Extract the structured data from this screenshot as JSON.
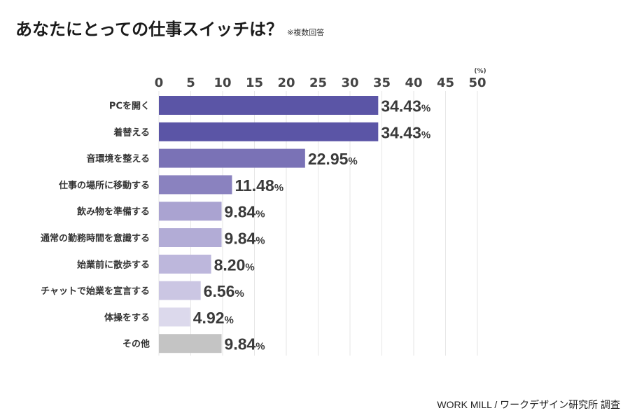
{
  "title": "あなたにとっての仕事スイッチは？",
  "title_note": "※複数回答",
  "footer": "WORK MILL / ワークデザイン研究所 調査",
  "chart_data": {
    "type": "bar",
    "orientation": "horizontal",
    "unit_label": "(%)",
    "xlim": [
      0,
      50
    ],
    "ticks": [
      "0",
      "5",
      "10",
      "15",
      "20",
      "25",
      "30",
      "35",
      "40",
      "45",
      "50"
    ],
    "grid": true,
    "categories": [
      "PCを開く",
      "着替える",
      "音環境を整える",
      "仕事の場所に移動する",
      "飲み物を準備する",
      "通常の勤務時間を意識する",
      "始業前に散歩する",
      "チャットで始業を宣言する",
      "体操をする",
      "その他"
    ],
    "values": [
      34.43,
      34.43,
      22.95,
      11.48,
      9.84,
      9.84,
      8.2,
      6.56,
      4.92,
      9.84
    ],
    "value_labels": [
      "34.43",
      "34.43",
      "22.95",
      "11.48",
      "9.84",
      "9.84",
      "8.20",
      "6.56",
      "4.92",
      "9.84"
    ],
    "value_suffix": "%",
    "colors": [
      "#5b55a6",
      "#5b55a6",
      "#7a72b6",
      "#8a82bf",
      "#aaa3d1",
      "#b2acd6",
      "#bdb7dc",
      "#cbc6e3",
      "#dcd9ec",
      "#c4c4c4"
    ]
  }
}
